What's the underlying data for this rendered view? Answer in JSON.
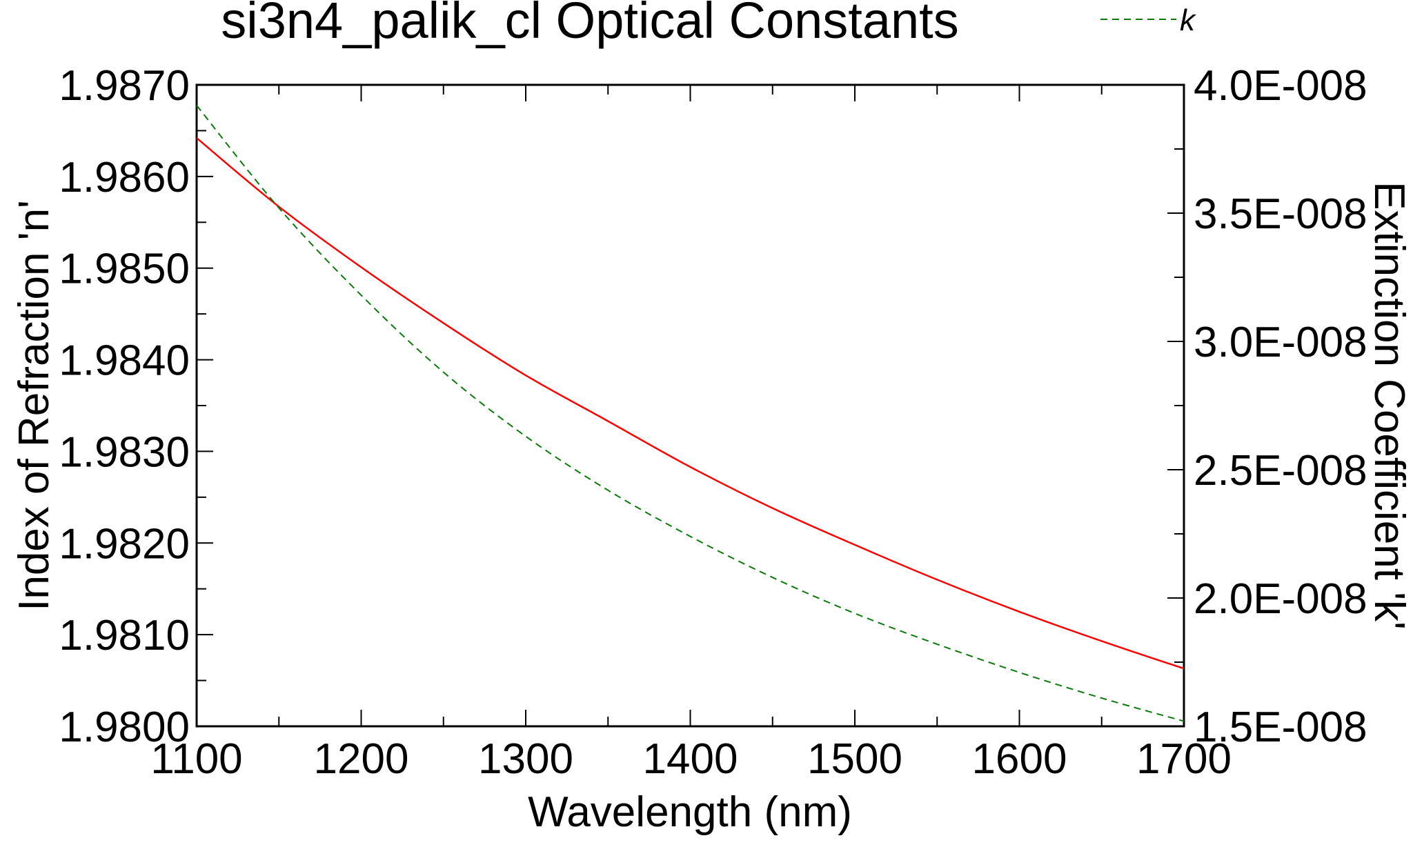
{
  "chart_data": {
    "type": "line",
    "title": "si3n4_palik_cl Optical Constants",
    "xlabel": "Wavelength (nm)",
    "ylabel_left": "Index of Refraction 'n'",
    "ylabel_right": "Extinction Coefficient 'k'",
    "xlim": [
      1100,
      1700
    ],
    "ylim_left": [
      1.98,
      1.987
    ],
    "ylim_right": [
      1.5e-08,
      4e-08
    ],
    "x_ticks": [
      "1100",
      "1200",
      "1300",
      "1400",
      "1500",
      "1600",
      "1700"
    ],
    "y_left_ticks": [
      "1.9870",
      "1.9860",
      "1.9850",
      "1.9840",
      "1.9830",
      "1.9820",
      "1.9810",
      "1.9800"
    ],
    "y_right_ticks": [
      "4.0E-008",
      "3.5E-008",
      "3.0E-008",
      "2.5E-008",
      "2.0E-008",
      "1.5E-008"
    ],
    "grid": false,
    "legend": {
      "placement": "top-right",
      "entries": [
        "k"
      ]
    },
    "x": [
      1100,
      1150,
      1200,
      1250,
      1300,
      1350,
      1400,
      1450,
      1500,
      1550,
      1600,
      1650,
      1700
    ],
    "series": [
      {
        "axis": "left",
        "color": "#ff0000",
        "dash": "solid",
        "values": [
          1.98642,
          1.98567,
          1.98501,
          1.9844,
          1.98383,
          1.98333,
          1.98283,
          1.98238,
          1.98198,
          1.9816,
          1.98125,
          1.98093,
          1.98063
        ]
      },
      {
        "name": "k",
        "axis": "right",
        "color": "#0a7a0a",
        "dash": "dashed",
        "values": [
          3.92e-08,
          3.52e-08,
          3.18e-08,
          2.88e-08,
          2.63e-08,
          2.42e-08,
          2.24e-08,
          2.08e-08,
          1.94e-08,
          1.82e-08,
          1.71e-08,
          1.61e-08,
          1.52e-08
        ]
      }
    ]
  }
}
